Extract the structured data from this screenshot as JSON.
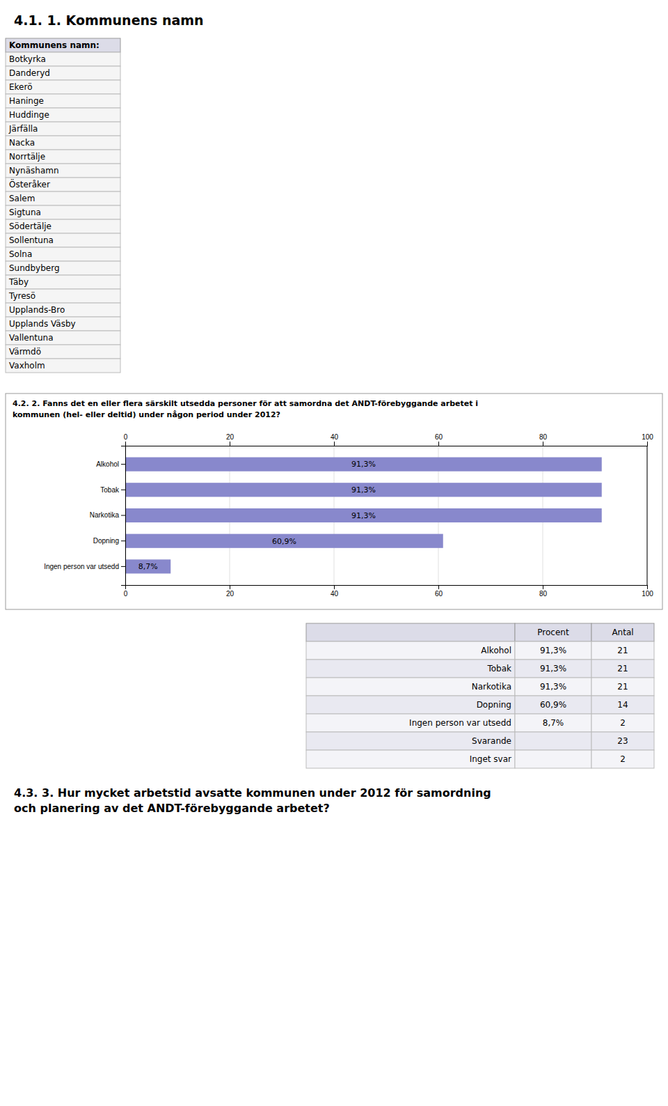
{
  "page_title": "4.1. 1. Kommunens namn",
  "municipality_table": {
    "header": "Kommunens namn:",
    "rows": [
      "Botkyrka",
      "Danderyd",
      "Ekerö",
      "Haninge",
      "Huddinge",
      "Järfälla",
      "Nacka",
      "Norrtälje",
      "Nynäshamn",
      "Österåker",
      "Salem",
      "Sigtuna",
      "Södertälje",
      "Sollentuna",
      "Solna",
      "Sundbyberg",
      "Täby",
      "Tyresö",
      "Upplands-Bro",
      "Upplands Väsby",
      "Vallentuna",
      "Värmdö",
      "Vaxholm"
    ]
  },
  "chart_data": {
    "type": "bar",
    "orientation": "horizontal",
    "title": "4.2. 2. Fanns det en eller flera särskilt utsedda personer för att samordna det ANDT-förebyggande arbetet i",
    "subtitle": "kommunen (hel- eller deltid) under någon period under 2012?",
    "categories": [
      "Alkohol",
      "Tobak",
      "Narkotika",
      "Dopning",
      "Ingen person var utsedd"
    ],
    "values": [
      91.3,
      91.3,
      91.3,
      60.9,
      8.7
    ],
    "value_labels": [
      "91,3%",
      "91,3%",
      "91,3%",
      "60,9%",
      "8,7%"
    ],
    "data_labels": true,
    "color": "#8888cc",
    "xlim": [
      0,
      100
    ],
    "xticks": [
      0,
      20,
      40,
      60,
      80,
      100
    ],
    "grid": true
  },
  "stats_table": {
    "headers": [
      "Procent",
      "Antal"
    ],
    "rows": [
      {
        "label": "Alkohol",
        "procent": "91,3%",
        "antal": 21
      },
      {
        "label": "Tobak",
        "procent": "91,3%",
        "antal": 21
      },
      {
        "label": "Narkotika",
        "procent": "91,3%",
        "antal": 21
      },
      {
        "label": "Dopning",
        "procent": "60,9%",
        "antal": 14
      },
      {
        "label": "Ingen person var utsedd",
        "procent": "8,7%",
        "antal": 2
      },
      {
        "label": "Svarande",
        "procent": null,
        "antal": 23
      },
      {
        "label": "Inget svar",
        "procent": null,
        "antal": 2
      }
    ]
  },
  "footer": [
    "4.3. 3. Hur mycket arbetstid avsatte kommunen under 2012 för samordning",
    "och planering av det ANDT-förebyggande arbetet?"
  ]
}
